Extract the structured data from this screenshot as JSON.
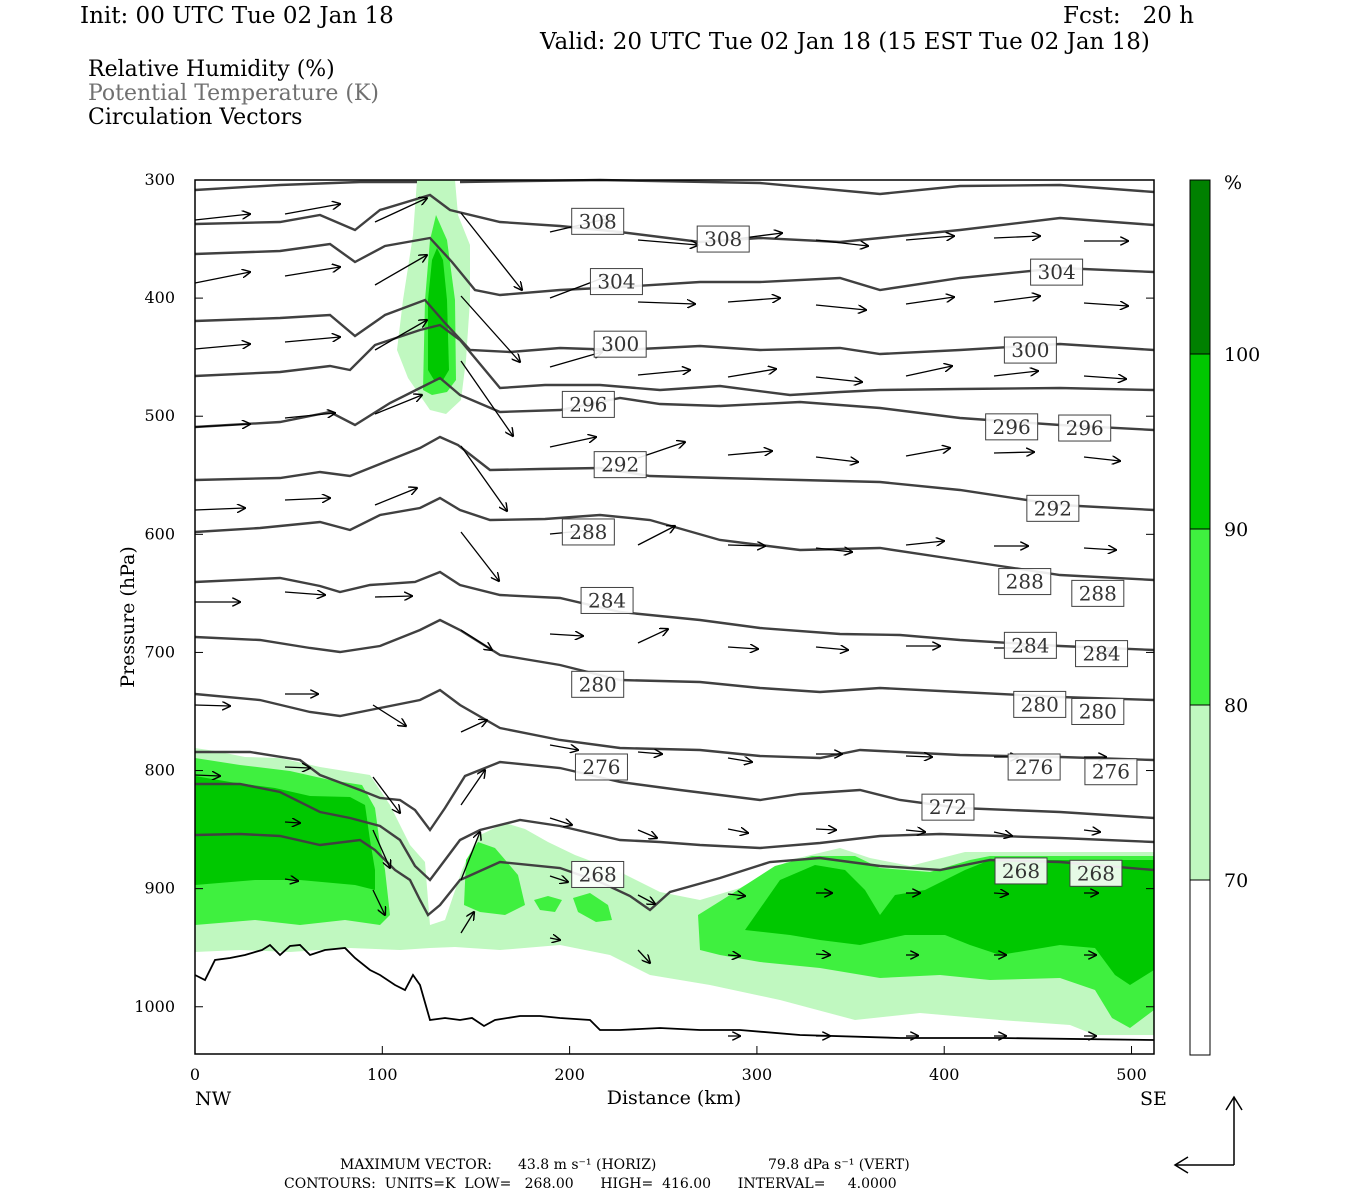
{
  "header": {
    "init": "Init: 00 UTC Tue 02 Jan 18",
    "fcst": "Fcst:   20 h",
    "valid": "Valid: 20 UTC Tue 02 Jan 18 (15 EST Tue 02 Jan 18)"
  },
  "fields": [
    {
      "label": "Relative Humidity (%)",
      "color": "#000000"
    },
    {
      "label": "Potential Temperature (K)",
      "color": "#707070"
    },
    {
      "label": "Circulation Vectors",
      "color": "#000000"
    }
  ],
  "footer": {
    "max_vector_label": "MAXIMUM VECTOR:",
    "horiz": "43.8 m s⁻¹ (HORIZ)",
    "vert": "79.8 dPa s⁻¹ (VERT)",
    "contours": "CONTOURS:  UNITS=K  LOW=   268.00      HIGH=  416.00      INTERVAL=     4.0000"
  },
  "colors": {
    "rh70": "#c0f8c0",
    "rh80": "#3ff03f",
    "rh90": "#00c800",
    "rh100": "#008000",
    "theta": "#404040",
    "terrain": "#000000"
  },
  "chart_data": {
    "type": "cross-section",
    "xlabel": "Distance (km)",
    "ylabel": "Pressure (hPa)",
    "xlim": [
      0,
      512
    ],
    "ylim": [
      1040,
      300
    ],
    "x_ticks": [
      "0",
      "100",
      "200",
      "300",
      "400",
      "500"
    ],
    "y_ticks": [
      "300",
      "400",
      "500",
      "600",
      "700",
      "800",
      "900",
      "1000"
    ],
    "end_labels": {
      "left": "NW",
      "right": "SE"
    },
    "colorbar": {
      "unit": "%",
      "levels": [
        "70",
        "80",
        "90",
        "100"
      ]
    },
    "theta_labels": [
      {
        "text": "308",
        "x": 215,
        "p": 335
      },
      {
        "text": "308",
        "x": 282,
        "p": 350
      },
      {
        "text": "304",
        "x": 225,
        "p": 386
      },
      {
        "text": "304",
        "x": 460,
        "p": 378
      },
      {
        "text": "300",
        "x": 227,
        "p": 439
      },
      {
        "text": "300",
        "x": 446,
        "p": 444
      },
      {
        "text": "296",
        "x": 210,
        "p": 490
      },
      {
        "text": "296",
        "x": 436,
        "p": 509
      },
      {
        "text": "296",
        "x": 475,
        "p": 510
      },
      {
        "text": "292",
        "x": 227,
        "p": 541
      },
      {
        "text": "292",
        "x": 458,
        "p": 578
      },
      {
        "text": "288",
        "x": 210,
        "p": 598
      },
      {
        "text": "288",
        "x": 443,
        "p": 640
      },
      {
        "text": "288",
        "x": 482,
        "p": 650
      },
      {
        "text": "284",
        "x": 220,
        "p": 656
      },
      {
        "text": "284",
        "x": 446,
        "p": 694
      },
      {
        "text": "284",
        "x": 484,
        "p": 701
      },
      {
        "text": "280",
        "x": 215,
        "p": 727
      },
      {
        "text": "280",
        "x": 451,
        "p": 744
      },
      {
        "text": "280",
        "x": 482,
        "p": 750
      },
      {
        "text": "276",
        "x": 217,
        "p": 797
      },
      {
        "text": "276",
        "x": 448,
        "p": 797
      },
      {
        "text": "276",
        "x": 489,
        "p": 801
      },
      {
        "text": "272",
        "x": 402,
        "p": 831
      },
      {
        "text": "268",
        "x": 215,
        "p": 888
      },
      {
        "text": "268",
        "x": 441,
        "p": 885
      },
      {
        "text": "268",
        "x": 481,
        "p": 887
      }
    ]
  }
}
